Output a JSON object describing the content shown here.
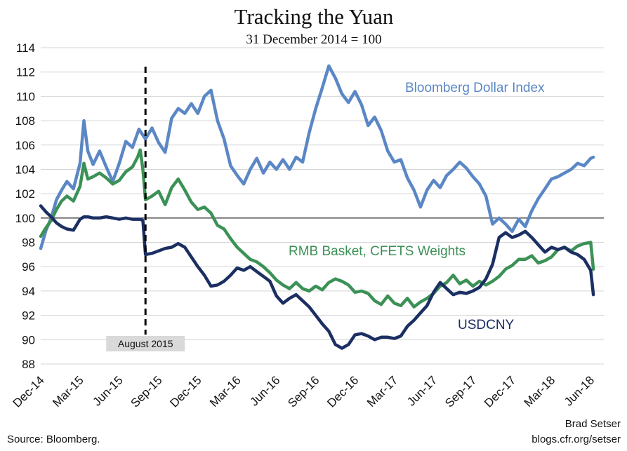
{
  "chart_data": {
    "type": "line",
    "title": "Tracking the Yuan",
    "subtitle": "31 December 2014 = 100",
    "xlabel": "",
    "ylabel": "",
    "ylim": [
      88,
      114
    ],
    "yticks": [
      88,
      90,
      92,
      94,
      96,
      98,
      100,
      102,
      104,
      106,
      108,
      110,
      112,
      114
    ],
    "reference_line": 100,
    "x_tick_labels": [
      "Dec-14",
      "Mar-15",
      "Jun-15",
      "Sep-15",
      "Dec-15",
      "Mar-16",
      "Jun-16",
      "Sep-16",
      "Dec-16",
      "Mar-17",
      "Jun-17",
      "Sep-17",
      "Dec-17",
      "Mar-18",
      "Jun-18"
    ],
    "x_unit": "months since Dec-14",
    "event": {
      "label": "August 2015",
      "x": 8
    },
    "series": [
      {
        "name": "Bloomberg Dollar Index",
        "color": "#5b87c5",
        "x": [
          0,
          0.4,
          0.8,
          1.2,
          1.6,
          2,
          2.5,
          3,
          3.3,
          3.6,
          4,
          4.5,
          5,
          5.5,
          6,
          6.5,
          7,
          7.5,
          8,
          8.5,
          9,
          9.5,
          10,
          10.5,
          11,
          11.5,
          12,
          12.5,
          13,
          13.5,
          14,
          14.5,
          15,
          15.5,
          16,
          16.5,
          17,
          17.5,
          18,
          18.5,
          19,
          19.5,
          20,
          20.5,
          21,
          21.5,
          22,
          22.5,
          23,
          23.5,
          24,
          24.5,
          25,
          25.5,
          26,
          26.5,
          27,
          27.5,
          28,
          28.5,
          29,
          29.5,
          30,
          30.5,
          31,
          31.5,
          32,
          32.5,
          33,
          33.5,
          34,
          34.5,
          35,
          35.5,
          36,
          36.5,
          37,
          37.5,
          38,
          38.5,
          39,
          39.5,
          40,
          40.5,
          41,
          41.5,
          42,
          42.2
        ],
        "values": [
          97.5,
          99.0,
          100.0,
          101.5,
          102.3,
          103.0,
          102.4,
          104.5,
          108.0,
          105.5,
          104.4,
          105.5,
          104.2,
          103.0,
          104.5,
          106.3,
          105.8,
          107.3,
          106.5,
          107.4,
          106.2,
          105.4,
          108.2,
          109.0,
          108.6,
          109.4,
          108.6,
          110.0,
          110.5,
          108.0,
          106.5,
          104.3,
          103.5,
          102.8,
          104.0,
          104.9,
          103.7,
          104.6,
          104.0,
          104.8,
          104.0,
          105.0,
          104.6,
          107.0,
          109.0,
          110.7,
          112.5,
          111.5,
          110.2,
          109.5,
          110.4,
          109.3,
          107.6,
          108.3,
          107.2,
          105.5,
          104.6,
          104.8,
          103.3,
          102.3,
          100.9,
          102.3,
          103.1,
          102.5,
          103.5,
          104.0,
          104.6,
          104.1,
          103.4,
          102.8,
          101.8,
          99.5,
          100.0,
          99.5,
          98.9,
          99.9,
          99.3,
          100.6,
          101.6,
          102.4,
          103.2,
          103.4,
          103.7,
          104.0,
          104.5,
          104.3,
          104.9,
          105.0
        ]
      },
      {
        "name": "RMB Basket, CFETS Weights",
        "color": "#3c9156",
        "x": [
          0,
          0.4,
          0.8,
          1.2,
          1.6,
          2,
          2.5,
          3,
          3.3,
          3.6,
          4,
          4.5,
          5,
          5.5,
          6,
          6.5,
          7,
          7.4,
          7.6,
          7.8,
          8,
          8.5,
          9,
          9.5,
          10,
          10.5,
          11,
          11.5,
          12,
          12.5,
          13,
          13.5,
          14,
          14.5,
          15,
          15.5,
          16,
          16.5,
          17,
          17.5,
          18,
          18.5,
          19,
          19.5,
          20,
          20.5,
          21,
          21.5,
          22,
          22.5,
          23,
          23.5,
          24,
          24.5,
          25,
          25.5,
          26,
          26.5,
          27,
          27.5,
          28,
          28.5,
          29,
          29.5,
          30,
          30.5,
          31,
          31.5,
          32,
          32.5,
          33,
          33.5,
          34,
          34.5,
          35,
          35.5,
          36,
          36.5,
          37,
          37.5,
          38,
          38.5,
          39,
          39.5,
          40,
          40.5,
          41,
          41.5,
          42,
          42.2
        ],
        "values": [
          98.5,
          99.2,
          99.8,
          100.7,
          101.4,
          101.8,
          101.4,
          102.6,
          104.5,
          103.2,
          103.4,
          103.7,
          103.3,
          102.8,
          103.1,
          103.8,
          104.2,
          105.0,
          105.6,
          104.0,
          101.5,
          101.8,
          102.2,
          101.1,
          102.5,
          103.2,
          102.3,
          101.3,
          100.7,
          100.9,
          100.4,
          99.4,
          99.1,
          98.3,
          97.6,
          97.1,
          96.6,
          96.4,
          96.0,
          95.5,
          94.9,
          94.5,
          94.2,
          94.7,
          94.2,
          94.0,
          94.4,
          94.1,
          94.7,
          95.0,
          94.8,
          94.5,
          93.9,
          94.0,
          93.8,
          93.2,
          92.9,
          93.6,
          93.0,
          92.8,
          93.4,
          92.7,
          93.1,
          93.4,
          93.8,
          94.4,
          94.7,
          95.3,
          94.6,
          94.9,
          94.4,
          94.8,
          94.5,
          94.8,
          95.2,
          95.8,
          96.1,
          96.6,
          96.6,
          96.9,
          96.3,
          96.5,
          96.8,
          97.4,
          97.6,
          97.3,
          97.7,
          97.9,
          98.0,
          95.8
        ]
      },
      {
        "name": "USDCNY",
        "color": "#1b2f63",
        "x": [
          0,
          0.4,
          0.8,
          1.2,
          1.6,
          2,
          2.5,
          3,
          3.3,
          3.6,
          4,
          4.5,
          5,
          5.5,
          6,
          6.5,
          7,
          7.4,
          7.6,
          7.8,
          8,
          8.5,
          9,
          9.5,
          10,
          10.5,
          11,
          11.5,
          12,
          12.5,
          13,
          13.5,
          14,
          14.5,
          15,
          15.5,
          16,
          16.5,
          17,
          17.5,
          18,
          18.5,
          19,
          19.5,
          20,
          20.5,
          21,
          21.5,
          22,
          22.5,
          23,
          23.5,
          24,
          24.5,
          25,
          25.5,
          26,
          26.5,
          27,
          27.5,
          28,
          28.5,
          29,
          29.5,
          30,
          30.5,
          31,
          31.5,
          32,
          32.5,
          33,
          33.5,
          34,
          34.5,
          35,
          35.5,
          36,
          36.5,
          37,
          37.5,
          38,
          38.5,
          39,
          39.5,
          40,
          40.5,
          41,
          41.5,
          42,
          42.2
        ],
        "values": [
          101.0,
          100.5,
          100.1,
          99.6,
          99.3,
          99.1,
          99.0,
          99.9,
          100.1,
          100.1,
          100.0,
          100.0,
          100.1,
          100.0,
          99.9,
          100.0,
          99.9,
          99.9,
          99.9,
          99.8,
          97.0,
          97.1,
          97.3,
          97.5,
          97.6,
          97.9,
          97.6,
          96.8,
          96.0,
          95.3,
          94.4,
          94.5,
          94.8,
          95.3,
          95.9,
          95.7,
          96.0,
          95.6,
          95.2,
          94.8,
          93.6,
          93.0,
          93.4,
          93.7,
          93.2,
          92.7,
          92.0,
          91.3,
          90.7,
          89.6,
          89.3,
          89.6,
          90.4,
          90.5,
          90.3,
          90.0,
          90.2,
          90.2,
          90.1,
          90.3,
          91.1,
          91.6,
          92.2,
          92.8,
          93.9,
          94.7,
          94.2,
          93.7,
          93.9,
          93.8,
          94.0,
          94.3,
          95.0,
          96.2,
          98.4,
          98.8,
          98.4,
          98.6,
          98.9,
          98.4,
          97.8,
          97.2,
          97.6,
          97.4,
          97.6,
          97.2,
          97.0,
          96.6,
          95.7,
          93.7
        ]
      }
    ]
  },
  "labels": {
    "dollar_index": "Bloomberg Dollar Index",
    "rmb_basket": "RMB Basket, CFETS Weights",
    "usdcny": "USDCNY"
  },
  "footer": {
    "source": "Source: Bloomberg.",
    "author": "Brad Setser",
    "url": "blogs.cfr.org/setser"
  }
}
